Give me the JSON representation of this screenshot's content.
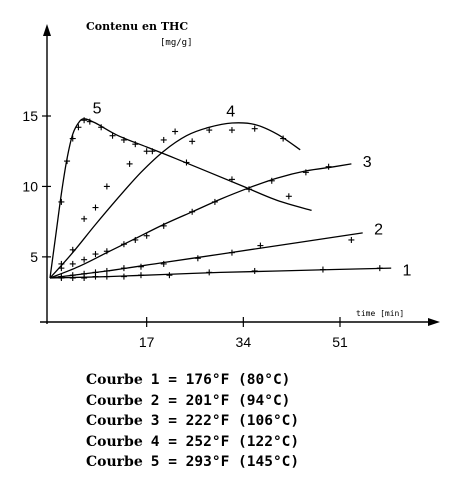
{
  "chart_data": {
    "type": "line",
    "ylabel_line1": "Contenu en THC",
    "ylabel_line2": "[mg/g]",
    "xlabel": "time [min]",
    "xlim": [
      -2,
      66
    ],
    "ylim": [
      0,
      19
    ],
    "x_ticks": [
      17,
      34,
      51
    ],
    "y_ticks": [
      5,
      10,
      15
    ],
    "grid": false,
    "series": [
      {
        "name": "1",
        "line": [
          [
            0,
            3.5
          ],
          [
            10,
            3.6
          ],
          [
            20,
            3.75
          ],
          [
            30,
            3.9
          ],
          [
            40,
            4.0
          ],
          [
            50,
            4.1
          ],
          [
            60,
            4.2
          ]
        ],
        "markers": [
          [
            2,
            3.5
          ],
          [
            4,
            3.5
          ],
          [
            6,
            3.5
          ],
          [
            8,
            3.6
          ],
          [
            10,
            3.6
          ],
          [
            13,
            3.6
          ],
          [
            16,
            3.7
          ],
          [
            21,
            3.7
          ],
          [
            28,
            3.9
          ],
          [
            36,
            4.0
          ],
          [
            48,
            4.1
          ],
          [
            58,
            4.2
          ]
        ]
      },
      {
        "name": "2",
        "line": [
          [
            0,
            3.5
          ],
          [
            10,
            4.0
          ],
          [
            20,
            4.6
          ],
          [
            30,
            5.2
          ],
          [
            40,
            5.8
          ],
          [
            50,
            6.4
          ],
          [
            55,
            6.7
          ]
        ],
        "markers": [
          [
            2,
            3.6
          ],
          [
            4,
            3.7
          ],
          [
            6,
            3.8
          ],
          [
            8,
            3.9
          ],
          [
            10,
            4.0
          ],
          [
            13,
            4.2
          ],
          [
            16,
            4.3
          ],
          [
            20,
            4.5
          ],
          [
            26,
            4.9
          ],
          [
            32,
            5.3
          ],
          [
            37,
            5.8
          ],
          [
            53,
            6.2
          ]
        ]
      },
      {
        "name": "3",
        "line": [
          [
            0,
            3.5
          ],
          [
            5,
            4.3
          ],
          [
            10,
            5.3
          ],
          [
            15,
            6.3
          ],
          [
            20,
            7.3
          ],
          [
            25,
            8.2
          ],
          [
            30,
            9.1
          ],
          [
            35,
            9.9
          ],
          [
            40,
            10.6
          ],
          [
            45,
            11.1
          ],
          [
            50,
            11.4
          ],
          [
            53,
            11.6
          ]
        ],
        "markers": [
          [
            2,
            4.2
          ],
          [
            4,
            4.5
          ],
          [
            6,
            4.8
          ],
          [
            8,
            5.2
          ],
          [
            10,
            5.4
          ],
          [
            13,
            5.9
          ],
          [
            15,
            6.2
          ],
          [
            17,
            6.5
          ],
          [
            20,
            7.2
          ],
          [
            25,
            8.2
          ],
          [
            29,
            8.9
          ],
          [
            35,
            9.8
          ],
          [
            39,
            10.4
          ],
          [
            45,
            11.0
          ],
          [
            49,
            11.4
          ]
        ]
      },
      {
        "name": "4",
        "line": [
          [
            0,
            3.5
          ],
          [
            4,
            5.3
          ],
          [
            8,
            7.3
          ],
          [
            12,
            9.2
          ],
          [
            16,
            11.0
          ],
          [
            20,
            12.5
          ],
          [
            24,
            13.6
          ],
          [
            28,
            14.2
          ],
          [
            32,
            14.5
          ],
          [
            36,
            14.4
          ],
          [
            40,
            13.7
          ],
          [
            44,
            12.6
          ]
        ],
        "markers": [
          [
            2,
            4.5
          ],
          [
            4,
            5.5
          ],
          [
            6,
            7.7
          ],
          [
            8,
            8.5
          ],
          [
            10,
            10.0
          ],
          [
            14,
            11.6
          ],
          [
            17,
            12.5
          ],
          [
            20,
            13.3
          ],
          [
            22,
            13.9
          ],
          [
            25,
            13.2
          ],
          [
            28,
            14.0
          ],
          [
            32,
            14.0
          ],
          [
            36,
            14.1
          ],
          [
            41,
            13.4
          ]
        ]
      },
      {
        "name": "5",
        "line": [
          [
            0,
            3.5
          ],
          [
            1,
            6.5
          ],
          [
            2,
            9.5
          ],
          [
            3,
            12.0
          ],
          [
            4,
            13.7
          ],
          [
            5,
            14.5
          ],
          [
            6,
            14.8
          ],
          [
            8,
            14.5
          ],
          [
            12,
            13.6
          ],
          [
            17,
            12.8
          ],
          [
            22,
            12.0
          ],
          [
            28,
            11.0
          ],
          [
            34,
            10.0
          ],
          [
            40,
            9.0
          ],
          [
            46,
            8.3
          ]
        ],
        "markers": [
          [
            2,
            8.9
          ],
          [
            3,
            11.8
          ],
          [
            4,
            13.4
          ],
          [
            5,
            14.2
          ],
          [
            6,
            14.7
          ],
          [
            7,
            14.6
          ],
          [
            9,
            14.2
          ],
          [
            11,
            13.6
          ],
          [
            13,
            13.3
          ],
          [
            15,
            13.0
          ],
          [
            18,
            12.5
          ],
          [
            24,
            11.7
          ],
          [
            32,
            10.5
          ],
          [
            42,
            9.3
          ]
        ]
      }
    ],
    "curve_labels": [
      {
        "text": "1",
        "x": 62,
        "y": 4.1
      },
      {
        "text": "2",
        "x": 57,
        "y": 7.0
      },
      {
        "text": "3",
        "x": 55,
        "y": 11.8
      },
      {
        "text": "4",
        "x": 31,
        "y": 15.4
      },
      {
        "text": "5",
        "x": 7.5,
        "y": 15.6
      }
    ]
  },
  "legend": [
    {
      "word": "Courbe",
      "rest": "1 = 176°F (80°C)"
    },
    {
      "word": "Courbe",
      "rest": "2 = 201°F (94°C)"
    },
    {
      "word": "Courbe",
      "rest": "3 = 222°F (106°C)"
    },
    {
      "word": "Courbe",
      "rest": "4 = 252°F (122°C)"
    },
    {
      "word": "Courbe",
      "rest": "5 = 293°F (145°C)"
    }
  ]
}
